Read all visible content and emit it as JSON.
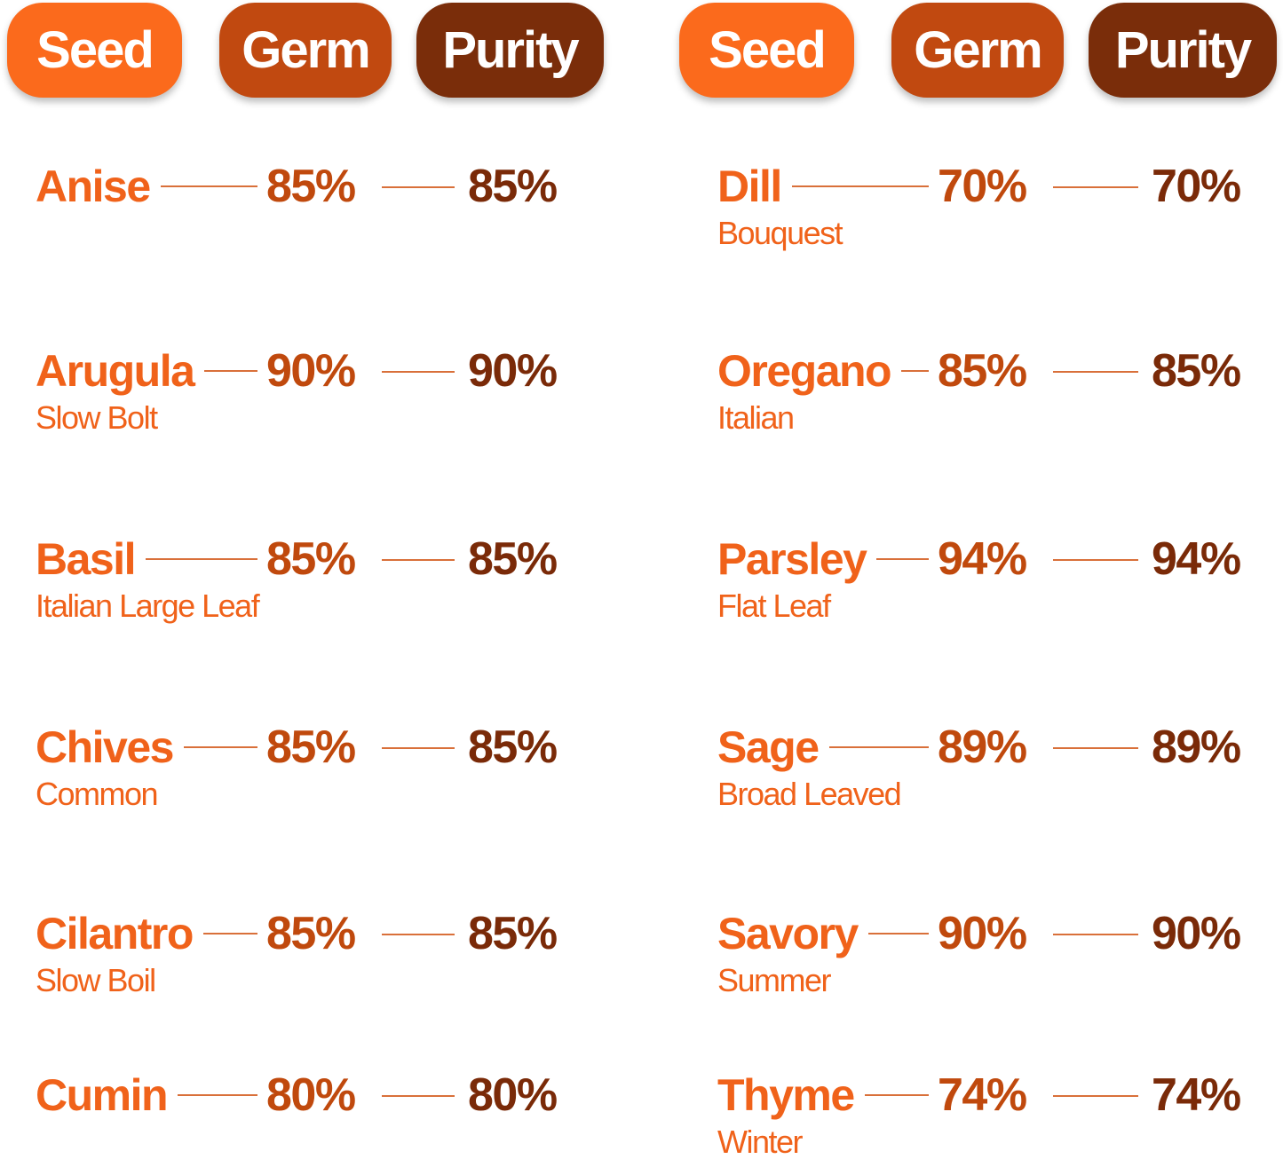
{
  "columns": [
    {
      "headers": [
        "Seed",
        "Germ",
        "Purity"
      ],
      "rows": [
        {
          "name": "Anise",
          "variety": null,
          "germ": "85%",
          "purity": "85%"
        },
        {
          "name": "Arugula",
          "variety": "Slow Bolt",
          "germ": "90%",
          "purity": "90%"
        },
        {
          "name": "Basil",
          "variety": "Italian Large Leaf",
          "germ": "85%",
          "purity": "85%"
        },
        {
          "name": "Chives",
          "variety": "Common",
          "germ": "85%",
          "purity": "85%"
        },
        {
          "name": "Cilantro",
          "variety": "Slow Boil",
          "germ": "85%",
          "purity": "85%"
        },
        {
          "name": "Cumin",
          "variety": null,
          "germ": "80%",
          "purity": "80%"
        }
      ]
    },
    {
      "headers": [
        "Seed",
        "Germ",
        "Purity"
      ],
      "rows": [
        {
          "name": "Dill",
          "variety": "Bouquest",
          "germ": "70%",
          "purity": "70%"
        },
        {
          "name": "Oregano",
          "variety": "Italian",
          "germ": "85%",
          "purity": "85%"
        },
        {
          "name": "Parsley",
          "variety": "Flat Leaf",
          "germ": "94%",
          "purity": "94%"
        },
        {
          "name": "Sage",
          "variety": "Broad Leaved",
          "germ": "89%",
          "purity": "89%"
        },
        {
          "name": "Savory",
          "variety": "Summer",
          "germ": "90%",
          "purity": "90%"
        },
        {
          "name": "Thyme",
          "variety": "Winter",
          "germ": "74%",
          "purity": "74%"
        }
      ]
    }
  ]
}
